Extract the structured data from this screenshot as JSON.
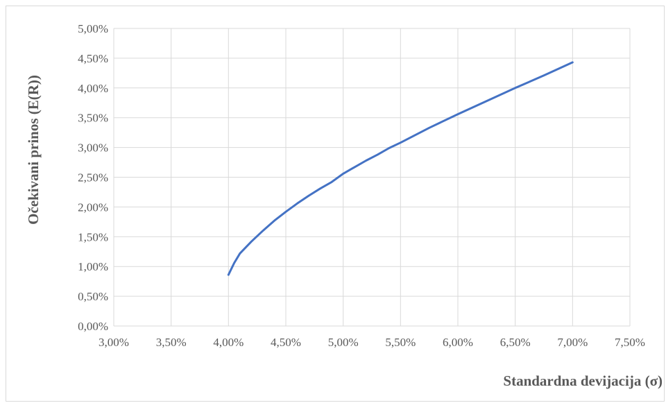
{
  "chart_data": {
    "type": "line",
    "title": "",
    "xlabel": "Standardna devijacija (σ)",
    "ylabel": "Očekivani prinos  (E(R))",
    "xlim": [
      0.03,
      0.075
    ],
    "ylim": [
      0,
      0.05
    ],
    "x_ticks": [
      "3,00%",
      "3,50%",
      "4,00%",
      "4,50%",
      "5,00%",
      "5,50%",
      "6,00%",
      "6,50%",
      "7,00%",
      "7,50%"
    ],
    "y_ticks": [
      "0,00%",
      "0,50%",
      "1,00%",
      "1,50%",
      "2,00%",
      "2,50%",
      "3,00%",
      "3,50%",
      "4,00%",
      "4,50%",
      "5,00%"
    ],
    "grid": true,
    "legend": "none",
    "series": [
      {
        "color": "#4472c4",
        "x": [
          0.04,
          0.0405,
          0.041,
          0.042,
          0.043,
          0.044,
          0.045,
          0.046,
          0.047,
          0.048,
          0.049,
          0.05,
          0.051,
          0.052,
          0.053,
          0.054,
          0.055,
          0.0575,
          0.06,
          0.0625,
          0.065,
          0.0675,
          0.07
        ],
        "y": [
          0.0086,
          0.0106,
          0.0122,
          0.0142,
          0.016,
          0.0177,
          0.0192,
          0.0206,
          0.0219,
          0.0231,
          0.0242,
          0.0256,
          0.0267,
          0.0278,
          0.0288,
          0.0299,
          0.0308,
          0.0333,
          0.0356,
          0.0378,
          0.04,
          0.0421,
          0.0443
        ]
      }
    ]
  }
}
